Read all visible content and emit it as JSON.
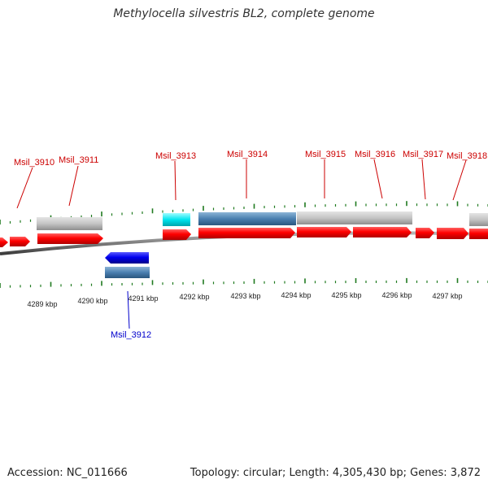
{
  "title": "Methylocella silvestris BL2, complete genome",
  "accession": "Accession: NC_011666",
  "summary": "Topology: circular; Length: 4,305,430 bp; Genes: 3,872",
  "colors": {
    "forward_cds": "#ff0000",
    "reverse_cds": "#0000ff",
    "gene_grey": "#c0c0c0",
    "steelblue": "#4a7fb0",
    "cyan": "#00e5ee",
    "label_forward": "#cc0000",
    "label_reverse": "#0000cc",
    "tick": "#1f7a1f",
    "backbone": "#808080"
  },
  "scale_labels": [
    "4289 kbp",
    "4290 kbp",
    "4291 kbp",
    "4292 kbp",
    "4293 kbp",
    "4294 kbp",
    "4295 kbp",
    "4296 kbp",
    "4297 kbp"
  ],
  "gene_labels": [
    {
      "id": "msil-3910",
      "text": "Msil_3910",
      "strand": "forward"
    },
    {
      "id": "msil-3911",
      "text": "Msil_3911",
      "strand": "forward"
    },
    {
      "id": "msil-3912",
      "text": "Msil_3912",
      "strand": "reverse"
    },
    {
      "id": "msil-3913",
      "text": "Msil_3913",
      "strand": "forward"
    },
    {
      "id": "msil-3914",
      "text": "Msil_3914",
      "strand": "forward"
    },
    {
      "id": "msil-3915",
      "text": "Msil_3915",
      "strand": "forward"
    },
    {
      "id": "msil-3916",
      "text": "Msil_3916",
      "strand": "forward"
    },
    {
      "id": "msil-3917",
      "text": "Msil_3917",
      "strand": "forward"
    },
    {
      "id": "msil-3918",
      "text": "Msil_3918",
      "strand": "forward"
    }
  ]
}
